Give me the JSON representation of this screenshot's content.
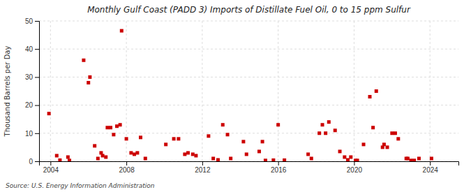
{
  "chart_data": {
    "type": "scatter",
    "title": "Monthly Gulf Coast (PADD 3) Imports of Distillate Fuel Oil, 0 to 15 ppm Sulfur",
    "ylabel": "Thousand Barrels per Day",
    "source": "Source: U.S. Energy Information Administration",
    "color": "#cc0000",
    "marker": "square",
    "grid": true,
    "xlim": [
      2003.4,
      2025.5
    ],
    "xticks": [
      2004,
      2008,
      2012,
      2016,
      2020,
      2024
    ],
    "ylim": [
      0,
      50
    ],
    "yticks": [
      0,
      10,
      20,
      30,
      40,
      50
    ],
    "x": [
      2003.92,
      2004.33,
      2004.5,
      2004.92,
      2005.0,
      2005.75,
      2006.0,
      2006.08,
      2006.33,
      2006.5,
      2006.67,
      2006.75,
      2006.92,
      2007.0,
      2007.17,
      2007.33,
      2007.5,
      2007.67,
      2007.75,
      2008.0,
      2008.25,
      2008.42,
      2008.58,
      2008.75,
      2009.0,
      2010.08,
      2010.5,
      2010.75,
      2011.08,
      2011.25,
      2011.5,
      2011.67,
      2012.33,
      2012.58,
      2012.83,
      2013.08,
      2013.33,
      2013.5,
      2014.17,
      2014.33,
      2015.0,
      2015.17,
      2015.33,
      2015.75,
      2016.0,
      2016.33,
      2017.58,
      2017.75,
      2018.17,
      2018.33,
      2018.5,
      2018.67,
      2019.0,
      2019.25,
      2019.5,
      2019.67,
      2019.83,
      2020.08,
      2020.17,
      2020.5,
      2020.83,
      2021.0,
      2021.17,
      2021.5,
      2021.58,
      2021.75,
      2022.0,
      2022.17,
      2022.33,
      2022.75,
      2022.83,
      2023.0,
      2023.17,
      2023.42,
      2024.08
    ],
    "values": [
      17.0,
      2.0,
      0.4,
      1.5,
      0.3,
      36.0,
      28.0,
      30.0,
      5.5,
      1.0,
      3.0,
      2.0,
      1.5,
      12.0,
      12.0,
      9.5,
      12.5,
      13.0,
      46.5,
      8.0,
      3.0,
      2.5,
      3.0,
      8.5,
      1.0,
      6.0,
      8.0,
      8.0,
      2.5,
      3.0,
      2.5,
      2.0,
      9.0,
      1.0,
      0.5,
      13.0,
      9.5,
      1.0,
      7.0,
      2.5,
      3.5,
      7.0,
      0.3,
      0.4,
      13.0,
      0.4,
      2.5,
      1.0,
      10.0,
      13.0,
      10.0,
      14.0,
      11.0,
      3.5,
      1.5,
      0.5,
      1.5,
      0.3,
      0.3,
      6.0,
      23.0,
      12.0,
      25.0,
      5.0,
      6.0,
      5.0,
      10.0,
      10.0,
      8.0,
      1.0,
      1.0,
      0.3,
      0.3,
      1.0,
      1.0
    ]
  }
}
